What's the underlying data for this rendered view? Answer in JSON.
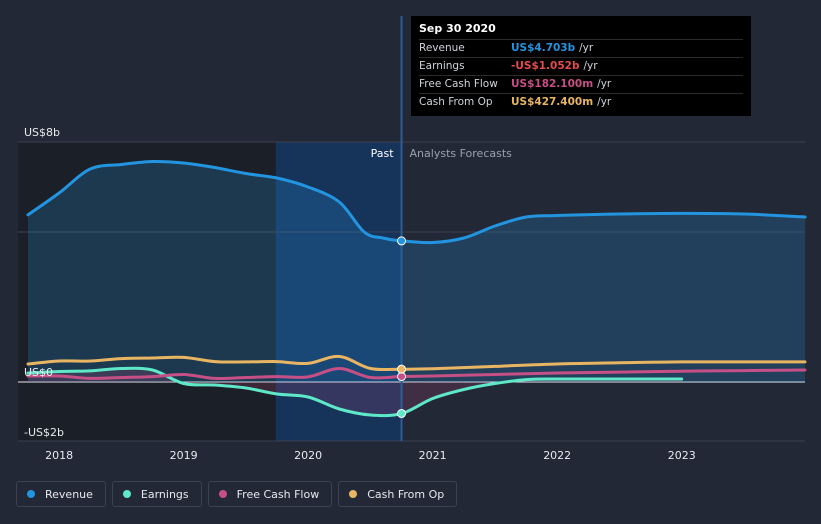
{
  "chart_data": {
    "type": "line",
    "title": "",
    "x_ticks": [
      "2018",
      "2019",
      "2020",
      "2021",
      "2022",
      "2023"
    ],
    "y_ticks": [
      {
        "label": "US$8b",
        "value": 8
      },
      {
        "label": "US$0",
        "value": 0
      },
      {
        "label": "-US$2b",
        "value": -2
      }
    ],
    "ylim": [
      -2,
      8
    ],
    "xlim": [
      2017.67,
      2023.99
    ],
    "divider_x": 2020.75,
    "highlight_from": 2019.74,
    "region_labels": {
      "past": "Past",
      "forecast": "Analysts Forecasts"
    },
    "colors": {
      "revenue": "#2394df",
      "earnings": "#5ee8c8",
      "fcf": "#c64f86",
      "cfo": "#e8b563",
      "background": "#222836",
      "past_shade": "#1b1f27",
      "highlight": "#16335a"
    },
    "series": [
      {
        "key": "revenue",
        "name": "Revenue",
        "color": "#2394df",
        "fill": true,
        "values": [
          [
            2017.75,
            5.57
          ],
          [
            2018.0,
            6.3
          ],
          [
            2018.25,
            7.1
          ],
          [
            2018.5,
            7.25
          ],
          [
            2018.75,
            7.35
          ],
          [
            2019.0,
            7.3
          ],
          [
            2019.25,
            7.15
          ],
          [
            2019.5,
            6.95
          ],
          [
            2019.75,
            6.8
          ],
          [
            2020.0,
            6.5
          ],
          [
            2020.25,
            6.0
          ],
          [
            2020.45,
            5.0
          ],
          [
            2020.6,
            4.8
          ],
          [
            2020.75,
            4.703
          ],
          [
            2021.0,
            4.65
          ],
          [
            2021.25,
            4.8
          ],
          [
            2021.5,
            5.2
          ],
          [
            2021.75,
            5.5
          ],
          [
            2022.0,
            5.55
          ],
          [
            2022.5,
            5.6
          ],
          [
            2023.0,
            5.62
          ],
          [
            2023.5,
            5.6
          ],
          [
            2023.99,
            5.5
          ]
        ]
      },
      {
        "key": "earnings",
        "name": "Earnings",
        "color": "#5ee8c8",
        "fill": false,
        "values": [
          [
            2017.75,
            0.3
          ],
          [
            2018.0,
            0.35
          ],
          [
            2018.25,
            0.37
          ],
          [
            2018.5,
            0.45
          ],
          [
            2018.75,
            0.4
          ],
          [
            2019.0,
            -0.05
          ],
          [
            2019.25,
            -0.1
          ],
          [
            2019.5,
            -0.2
          ],
          [
            2019.75,
            -0.4
          ],
          [
            2020.0,
            -0.5
          ],
          [
            2020.25,
            -0.9
          ],
          [
            2020.5,
            -1.1
          ],
          [
            2020.75,
            -1.052
          ],
          [
            2021.0,
            -0.55
          ],
          [
            2021.25,
            -0.25
          ],
          [
            2021.5,
            -0.05
          ],
          [
            2021.75,
            0.08
          ],
          [
            2022.0,
            0.1
          ],
          [
            2022.5,
            0.1
          ],
          [
            2023.0,
            0.1
          ]
        ]
      },
      {
        "key": "fcf",
        "name": "Free Cash Flow",
        "color": "#c64f86",
        "fill": false,
        "values": [
          [
            2017.75,
            0.2
          ],
          [
            2018.0,
            0.2
          ],
          [
            2018.25,
            0.12
          ],
          [
            2018.5,
            0.15
          ],
          [
            2018.75,
            0.18
          ],
          [
            2019.0,
            0.25
          ],
          [
            2019.25,
            0.12
          ],
          [
            2019.5,
            0.15
          ],
          [
            2019.75,
            0.18
          ],
          [
            2020.0,
            0.17
          ],
          [
            2020.25,
            0.45
          ],
          [
            2020.5,
            0.15
          ],
          [
            2020.75,
            0.182
          ],
          [
            2021.0,
            0.2
          ],
          [
            2021.5,
            0.25
          ],
          [
            2022.0,
            0.3
          ],
          [
            2022.5,
            0.33
          ],
          [
            2023.0,
            0.36
          ],
          [
            2023.5,
            0.38
          ],
          [
            2023.99,
            0.4
          ]
        ]
      },
      {
        "key": "cfo",
        "name": "Cash From Op",
        "color": "#e8b563",
        "fill": false,
        "values": [
          [
            2017.75,
            0.6
          ],
          [
            2018.0,
            0.7
          ],
          [
            2018.25,
            0.7
          ],
          [
            2018.5,
            0.78
          ],
          [
            2018.75,
            0.8
          ],
          [
            2019.0,
            0.82
          ],
          [
            2019.25,
            0.68
          ],
          [
            2019.5,
            0.67
          ],
          [
            2019.75,
            0.68
          ],
          [
            2020.0,
            0.62
          ],
          [
            2020.25,
            0.85
          ],
          [
            2020.5,
            0.45
          ],
          [
            2020.75,
            0.4274
          ],
          [
            2021.0,
            0.44
          ],
          [
            2021.5,
            0.52
          ],
          [
            2022.0,
            0.6
          ],
          [
            2022.5,
            0.64
          ],
          [
            2023.0,
            0.67
          ],
          [
            2023.5,
            0.67
          ],
          [
            2023.99,
            0.67
          ]
        ]
      }
    ]
  },
  "tooltip": {
    "date": "Sep 30 2020",
    "rows": [
      {
        "label": "Revenue",
        "value": "US$4.703b",
        "unit": "/yr",
        "color": "#2394df"
      },
      {
        "label": "Earnings",
        "value": "-US$1.052b",
        "unit": "/yr",
        "color": "#e64b4b"
      },
      {
        "label": "Free Cash Flow",
        "value": "US$182.100m",
        "unit": "/yr",
        "color": "#c64f86"
      },
      {
        "label": "Cash From Op",
        "value": "US$427.400m",
        "unit": "/yr",
        "color": "#e8b563"
      }
    ]
  },
  "legend": [
    {
      "label": "Revenue",
      "color": "#2394df"
    },
    {
      "label": "Earnings",
      "color": "#5ee8c8"
    },
    {
      "label": "Free Cash Flow",
      "color": "#c64f86"
    },
    {
      "label": "Cash From Op",
      "color": "#e8b563"
    }
  ]
}
